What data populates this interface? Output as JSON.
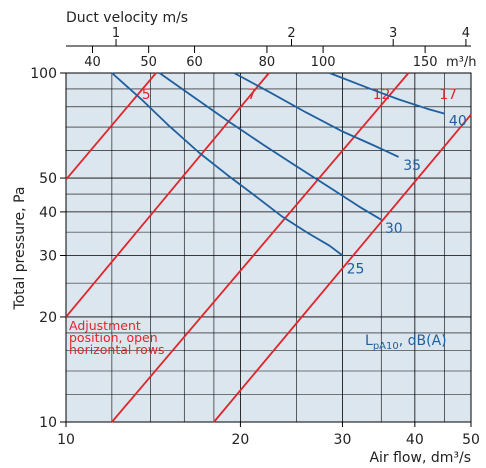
{
  "colors": {
    "background": "#dce6ef",
    "grid": "#000000",
    "red": "#e0262b",
    "blue": "#1f5f9e",
    "text": "#222222"
  },
  "chart_data": {
    "type": "line",
    "scale": "log-log",
    "xlabel": "Air flow, dm³/s",
    "ylabel": "Total pressure, Pa",
    "top_axis_label": "Duct velocity m/s",
    "top_unit_label": "m³/h",
    "xlim": [
      10,
      50
    ],
    "ylim": [
      10,
      100
    ],
    "x_ticks": [
      {
        "value": 10,
        "label": "10"
      },
      {
        "value": 20,
        "label": "20"
      },
      {
        "value": 30,
        "label": "30"
      },
      {
        "value": 40,
        "label": "40"
      },
      {
        "value": 50,
        "label": "50"
      }
    ],
    "y_ticks": [
      {
        "value": 10,
        "label": "10"
      },
      {
        "value": 20,
        "label": "20"
      },
      {
        "value": 30,
        "label": "30"
      },
      {
        "value": 40,
        "label": "40"
      },
      {
        "value": 50,
        "label": "50"
      },
      {
        "value": 100,
        "label": "100"
      }
    ],
    "m3h_ticks": [
      {
        "value": 40,
        "label": "40"
      },
      {
        "value": 50,
        "label": "50"
      },
      {
        "value": 60,
        "label": "60"
      },
      {
        "value": 80,
        "label": "80"
      },
      {
        "value": 100,
        "label": "100"
      },
      {
        "value": 150,
        "label": "150"
      }
    ],
    "velocity_ticks": [
      {
        "flow": 12.2,
        "label": "1"
      },
      {
        "flow": 24.5,
        "label": "2"
      },
      {
        "flow": 36.7,
        "label": "3"
      },
      {
        "flow": 49.0,
        "label": "4"
      }
    ],
    "extra_x_gridlines": [
      12,
      14,
      16,
      18,
      25,
      35,
      45
    ],
    "extra_y_gridlines": [
      12,
      14,
      16,
      18,
      25,
      35,
      45,
      60,
      70,
      80,
      90
    ],
    "adjustment_note": [
      "Adjustment",
      "position, open",
      "horizontal rows"
    ],
    "sound_unit_label": [
      "L",
      "pA10",
      ", dB(A)"
    ],
    "adjustment_lines": [
      {
        "name": "5",
        "points": [
          [
            10,
            49.5
          ],
          [
            14.3,
            100
          ]
        ],
        "label_at": [
          14.0,
          87
        ]
      },
      {
        "name": "7",
        "points": [
          [
            10,
            20
          ],
          [
            22.4,
            100
          ]
        ],
        "label_at": [
          21.3,
          87
        ]
      },
      {
        "name": "12",
        "points": [
          [
            12,
            10
          ],
          [
            39,
            100
          ]
        ],
        "label_at": [
          36.3,
          87
        ]
      },
      {
        "name": "17",
        "points": [
          [
            18,
            10
          ],
          [
            50,
            76
          ]
        ],
        "label_at": [
          47.3,
          87
        ]
      }
    ],
    "sound_curves": [
      {
        "name": "25",
        "points": [
          [
            12,
            100
          ],
          [
            13.5,
            84
          ],
          [
            15,
            71
          ],
          [
            17,
            59
          ],
          [
            19,
            51
          ],
          [
            21,
            45
          ],
          [
            23.5,
            39
          ],
          [
            26,
            35
          ],
          [
            28.5,
            32
          ],
          [
            30,
            30
          ]
        ],
        "label_at": [
          30.5,
          27.5
        ]
      },
      {
        "name": "30",
        "points": [
          [
            14.5,
            100
          ],
          [
            16.5,
            86
          ],
          [
            19,
            73
          ],
          [
            22,
            62
          ],
          [
            25,
            54
          ],
          [
            28.5,
            47
          ],
          [
            32,
            41.5
          ],
          [
            35,
            38
          ]
        ],
        "label_at": [
          35.5,
          36
        ]
      },
      {
        "name": "35",
        "points": [
          [
            19.5,
            100
          ],
          [
            22.5,
            88
          ],
          [
            26,
            77
          ],
          [
            30,
            68
          ],
          [
            34,
            62
          ],
          [
            37.5,
            57.5
          ]
        ],
        "label_at": [
          38.2,
          54.5
        ]
      },
      {
        "name": "40",
        "points": [
          [
            28.5,
            100
          ],
          [
            33,
            91
          ],
          [
            37.5,
            84
          ],
          [
            42,
            79
          ],
          [
            45,
            76.5
          ]
        ],
        "label_at": [
          45.8,
          73
        ]
      }
    ]
  }
}
